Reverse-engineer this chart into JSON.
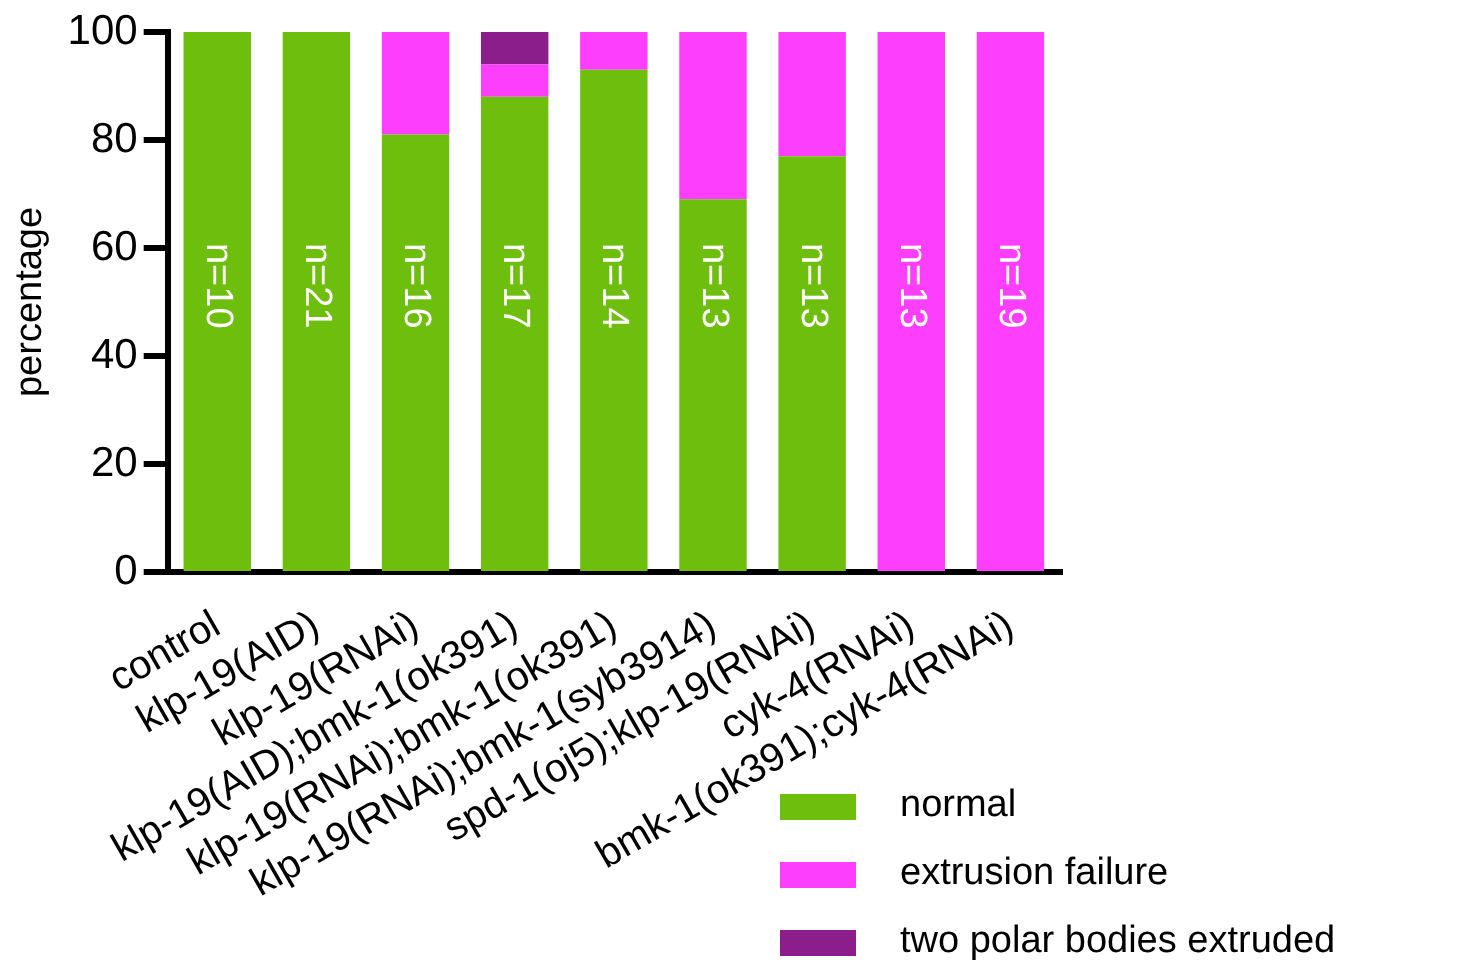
{
  "chart_data": {
    "type": "bar",
    "stacked": true,
    "ylabel": "percentage",
    "categories": [
      "control",
      "klp-19(AID)",
      "klp-19(RNAi)",
      "klp-19(AID);bmk-1(ok391)",
      "klp-19(RNAi);bmk-1(ok391)",
      "klp-19(RNAi);bmk-1(syb3914)",
      "spd-1(oj5);klp-19(RNAi)",
      "cyk-4(RNAi)",
      "bmk-1(ok391);cyk-4(RNAi)"
    ],
    "series": [
      {
        "name": "normal",
        "color": "#6ebe0e",
        "values": [
          100,
          100,
          81,
          88,
          93,
          69,
          77,
          0,
          0
        ]
      },
      {
        "name": "extrusion failure",
        "color": "#fd3ffd",
        "values": [
          0,
          0,
          19,
          6,
          7,
          31,
          23,
          100,
          100
        ]
      },
      {
        "name": "two polar bodies extruded",
        "color": "#8b1e8a",
        "values": [
          0,
          0,
          0,
          6,
          0,
          0,
          0,
          0,
          0
        ]
      }
    ],
    "ylim": [
      0,
      100
    ],
    "yticks": [
      0,
      20,
      40,
      60,
      80,
      100
    ],
    "grid": false,
    "legend": "bottom right",
    "annotations": [
      "n=10",
      "n=21",
      "n=16",
      "n=17",
      "n=14",
      "n=13",
      "n=13",
      "n=13",
      "n=19"
    ]
  }
}
